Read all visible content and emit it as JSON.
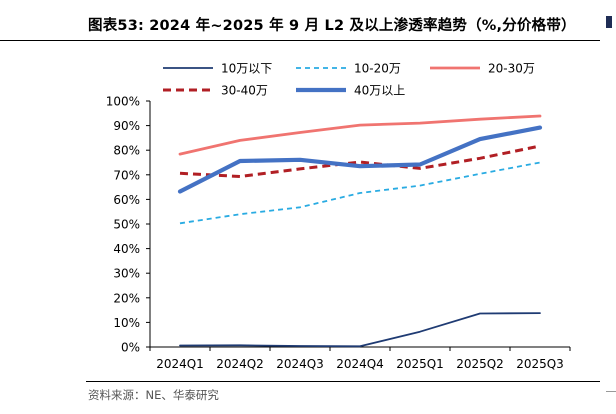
{
  "figure": {
    "title": "图表53:  2024 年~2025 年 9 月 L2 及以上渗透率趋势（%,分价格带）",
    "source": "资料来源：NE、华泰研究"
  },
  "chart_data": {
    "type": "line",
    "title": "",
    "xlabel": "",
    "ylabel": "",
    "categories": [
      "2024Q1",
      "2024Q2",
      "2024Q3",
      "2024Q4",
      "2025Q1",
      "2025Q2",
      "2025Q3"
    ],
    "y_ticks": [
      "0%",
      "10%",
      "20%",
      "30%",
      "40%",
      "50%",
      "60%",
      "70%",
      "80%",
      "90%",
      "100%"
    ],
    "ylim": [
      0,
      100
    ],
    "grid": false,
    "legend_position": "top",
    "series": [
      {
        "name": "10万以下",
        "color": "#1f3b73",
        "style": "solid",
        "width": 1.8,
        "values": [
          0.6,
          0.7,
          0.4,
          0.3,
          6.2,
          13.6,
          13.8
        ]
      },
      {
        "name": "10-20万",
        "color": "#29abe2",
        "style": "dashed",
        "width": 1.8,
        "values": [
          50.3,
          54.0,
          56.8,
          62.6,
          65.6,
          70.4,
          75.0
        ]
      },
      {
        "name": "20-30万",
        "color": "#f07470",
        "style": "solid",
        "width": 2.8,
        "values": [
          78.4,
          84.0,
          87.2,
          90.2,
          91.0,
          92.6,
          93.9
        ]
      },
      {
        "name": "30-40万",
        "color": "#b11f24",
        "style": "dashed",
        "width": 3.0,
        "values": [
          70.6,
          69.3,
          72.4,
          75.2,
          72.6,
          76.7,
          81.7
        ]
      },
      {
        "name": "40万以上",
        "color": "#4472c4",
        "style": "solid",
        "width": 4.2,
        "values": [
          63.2,
          75.6,
          76.1,
          73.5,
          74.2,
          84.5,
          89.2
        ]
      }
    ]
  }
}
